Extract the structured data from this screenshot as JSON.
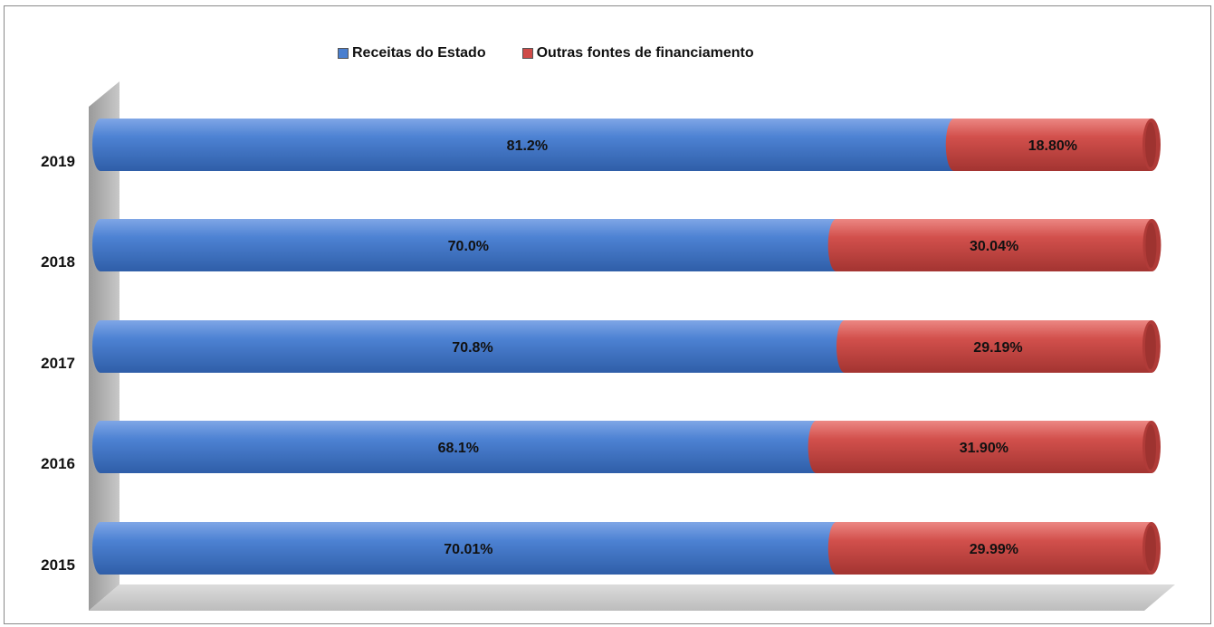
{
  "chart_data": {
    "type": "bar",
    "orientation": "horizontal",
    "stacked": true,
    "style": "3d-cylinder",
    "categories": [
      "2019",
      "2018",
      "2017",
      "2016",
      "2015"
    ],
    "series": [
      {
        "name": "Receitas do Estado",
        "color": "#4a7fcf",
        "values": [
          81.2,
          70.0,
          70.8,
          68.1,
          70.01
        ],
        "labels": [
          "81.2%",
          "70.0%",
          "70.8%",
          "68.1%",
          "70.01%"
        ]
      },
      {
        "name": "Outras fontes de financiamento",
        "color": "#cf4b48",
        "values": [
          18.8,
          30.04,
          29.19,
          31.9,
          29.99
        ],
        "labels": [
          "18.80%",
          "30.04%",
          "29.19%",
          "31.90%",
          "29.99%"
        ]
      }
    ],
    "xlim": [
      0,
      100
    ],
    "legend_position": "top",
    "grid": false,
    "title": "",
    "xlabel": "",
    "ylabel": ""
  }
}
